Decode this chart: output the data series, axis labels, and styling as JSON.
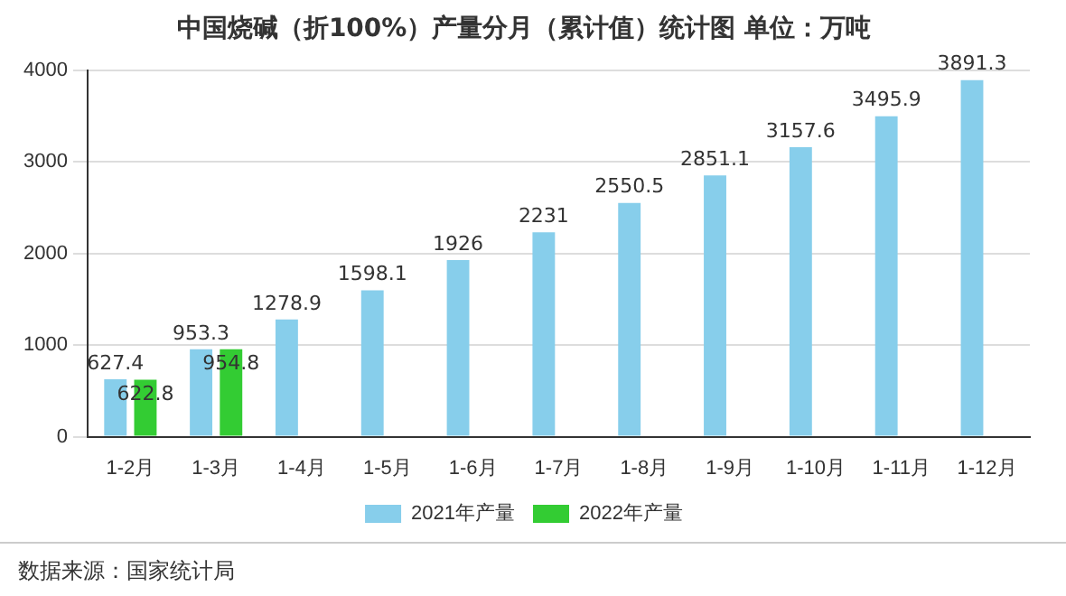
{
  "chart_data": {
    "type": "bar",
    "title": "中国烧碱（折100%）产量分月（累计值）统计图 单位：万吨",
    "categories": [
      "1-2月",
      "1-3月",
      "1-4月",
      "1-5月",
      "1-6月",
      "1-7月",
      "1-8月",
      "1-9月",
      "1-10月",
      "1-11月",
      "1-12月"
    ],
    "series": [
      {
        "name": "2021年产量",
        "color": "#87ceeb",
        "values": [
          627.4,
          953.3,
          1278.9,
          1598.1,
          1926,
          2231,
          2550.5,
          2851.1,
          3157.6,
          3495.9,
          3891.3
        ]
      },
      {
        "name": "2022年产量",
        "color": "#33cc33",
        "values": [
          622.8,
          954.8,
          null,
          null,
          null,
          null,
          null,
          null,
          null,
          null,
          null
        ]
      }
    ],
    "ylim": [
      0,
      4000
    ],
    "yticks": [
      0,
      1000,
      2000,
      3000,
      4000
    ],
    "grid": "y",
    "legend": "bottom",
    "data_labels": true,
    "annotations": [
      "数据来源：国家统计局"
    ]
  }
}
